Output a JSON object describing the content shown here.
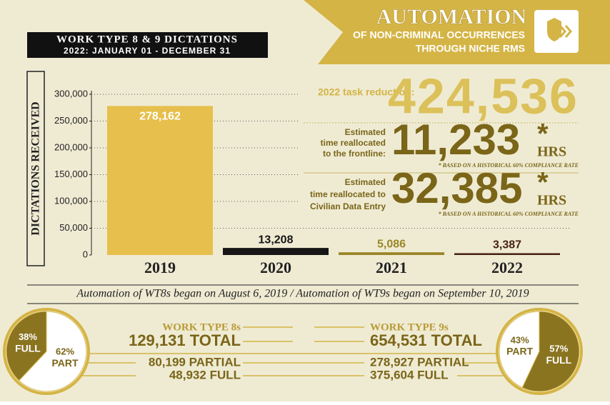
{
  "header": {
    "title": "WORK TYPE 8 & 9 DICTATIONS",
    "subtitle": "2022: JANUARY 01 - DECEMBER 31"
  },
  "banner": {
    "title": "AUTOMATION",
    "line1": "OF NON-CRIMINAL OCCURRENCES",
    "line2": "THROUGH NICHE RMS"
  },
  "stats": {
    "reduction_label": "2022 task reduction:",
    "reduction": "424,536",
    "frontline_label": [
      "Estimated",
      "time reallocated",
      "to the frontline:"
    ],
    "frontline": "11,233",
    "civilian_label": [
      "Estimated",
      "time reallocated to",
      "Civilian Data Entry"
    ],
    "civilian": "32,385",
    "asterisk": "*",
    "unit": "HRS",
    "footnote": "* BASED ON A HISTORICAL 60% COMPLIANCE RATE"
  },
  "note": "Automation of WT8s began on August 6, 2019  /  Automation of WT9s began on September 10, 2019",
  "wt8": {
    "title": "WORK TYPE 8s",
    "total": "129,131 TOTAL",
    "partial": "80,199 PARTIAL",
    "full": "48,932 FULL"
  },
  "wt9": {
    "title": "WORK TYPE 9s",
    "total": "654,531 TOTAL",
    "partial": "278,927 PARTIAL",
    "full": "375,604 FULL"
  },
  "chart_data": [
    {
      "type": "bar",
      "y_label": "DICTATIONS RECEIVED",
      "categories": [
        "2019",
        "2020",
        "2021",
        "2022"
      ],
      "values": [
        278162,
        13208,
        5086,
        3387
      ],
      "value_labels": [
        "278,162",
        "13,208",
        "5,086",
        "3,387"
      ],
      "colors": [
        "#e6bf4c",
        "#161616",
        "#9a8628",
        "#4a2214"
      ],
      "ylim": [
        0,
        300000
      ],
      "yticks": [
        0,
        {
          "value": 50000,
          "label": "50,000"
        },
        {
          "value": 100000,
          "label": "100,000"
        },
        {
          "value": 150000,
          "label": "150,000"
        },
        {
          "value": 200000,
          "label": "200,000"
        },
        {
          "value": 250000,
          "label": "250,000"
        },
        {
          "value": 300000,
          "label": "300,000"
        }
      ],
      "grid": true
    },
    {
      "type": "pie",
      "categories": [
        "FULL",
        "PART"
      ],
      "values": [
        38,
        62
      ],
      "value_labels": [
        "38%",
        "62%"
      ],
      "colors": [
        "#8a7420",
        "#ffffff"
      ],
      "direction": "counterclockwise"
    },
    {
      "type": "pie",
      "categories": [
        "FULL",
        "PART"
      ],
      "values": [
        57,
        43
      ],
      "value_labels": [
        "57%",
        "43%"
      ],
      "colors": [
        "#8a7420",
        "#ffffff"
      ],
      "direction": "clockwise"
    }
  ]
}
